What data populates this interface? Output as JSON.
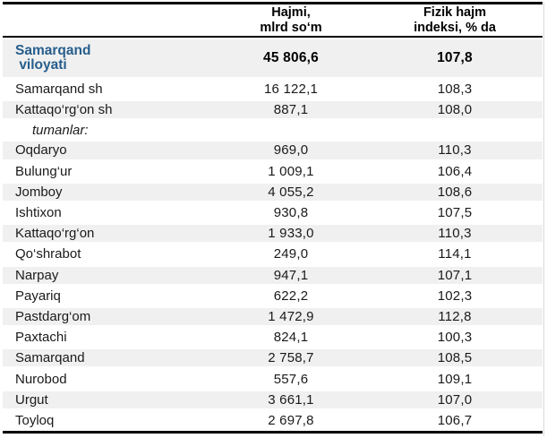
{
  "header": {
    "region_label": "",
    "volume_label": "Hajmi,\nmlrd so‘m",
    "index_label": "Fizik hajm\nindeksi, % da"
  },
  "rows": [
    {
      "name": "Samarqand\n viloyati",
      "hajmi": "45 806,6",
      "indeks": "107,8",
      "style": "total",
      "shaded": true
    },
    {
      "name": "Samarqand sh",
      "hajmi": "16 122,1",
      "indeks": "108,3",
      "style": "normal",
      "shaded": false
    },
    {
      "name": "Kattaqo‘rg‘on sh",
      "hajmi": "887,1",
      "indeks": "108,0",
      "style": "normal",
      "shaded": true
    },
    {
      "name": "tumanlar:",
      "hajmi": "",
      "indeks": "",
      "style": "group",
      "shaded": false
    },
    {
      "name": "Oqdaryo",
      "hajmi": "969,0",
      "indeks": "110,3",
      "style": "normal",
      "shaded": true
    },
    {
      "name": "Bulung‘ur",
      "hajmi": "1 009,1",
      "indeks": "106,4",
      "style": "normal",
      "shaded": false
    },
    {
      "name": "Jomboy",
      "hajmi": "4 055,2",
      "indeks": "108,6",
      "style": "normal",
      "shaded": true
    },
    {
      "name": "Ishtixon",
      "hajmi": "930,8",
      "indeks": "107,5",
      "style": "normal",
      "shaded": false
    },
    {
      "name": "Kattaqo‘rg‘on",
      "hajmi": "1 933,0",
      "indeks": "110,3",
      "style": "normal",
      "shaded": true
    },
    {
      "name": "Qo‘shrabot",
      "hajmi": "249,0",
      "indeks": "114,1",
      "style": "normal",
      "shaded": false
    },
    {
      "name": "Narpay",
      "hajmi": "947,1",
      "indeks": "107,1",
      "style": "normal",
      "shaded": true
    },
    {
      "name": "Payariq",
      "hajmi": "622,2",
      "indeks": "102,3",
      "style": "normal",
      "shaded": false
    },
    {
      "name": "Pastdarg‘om",
      "hajmi": "1 472,9",
      "indeks": "112,8",
      "style": "normal",
      "shaded": true
    },
    {
      "name": "Paxtachi",
      "hajmi": "824,1",
      "indeks": "100,3",
      "style": "normal",
      "shaded": false
    },
    {
      "name": "Samarqand",
      "hajmi": "2 758,7",
      "indeks": "108,5",
      "style": "normal",
      "shaded": true
    },
    {
      "name": "Nurobod",
      "hajmi": "557,6",
      "indeks": "109,1",
      "style": "normal",
      "shaded": false
    },
    {
      "name": "Urgut",
      "hajmi": "3 661,1",
      "indeks": "107,0",
      "style": "normal",
      "shaded": true
    },
    {
      "name": "Toyloq",
      "hajmi": "2 697,8",
      "indeks": "106,7",
      "style": "normal",
      "shaded": false
    }
  ],
  "colors": {
    "accent_blue": "#265d8c",
    "row_shading": "#f0f0f0",
    "border": "#000000"
  }
}
